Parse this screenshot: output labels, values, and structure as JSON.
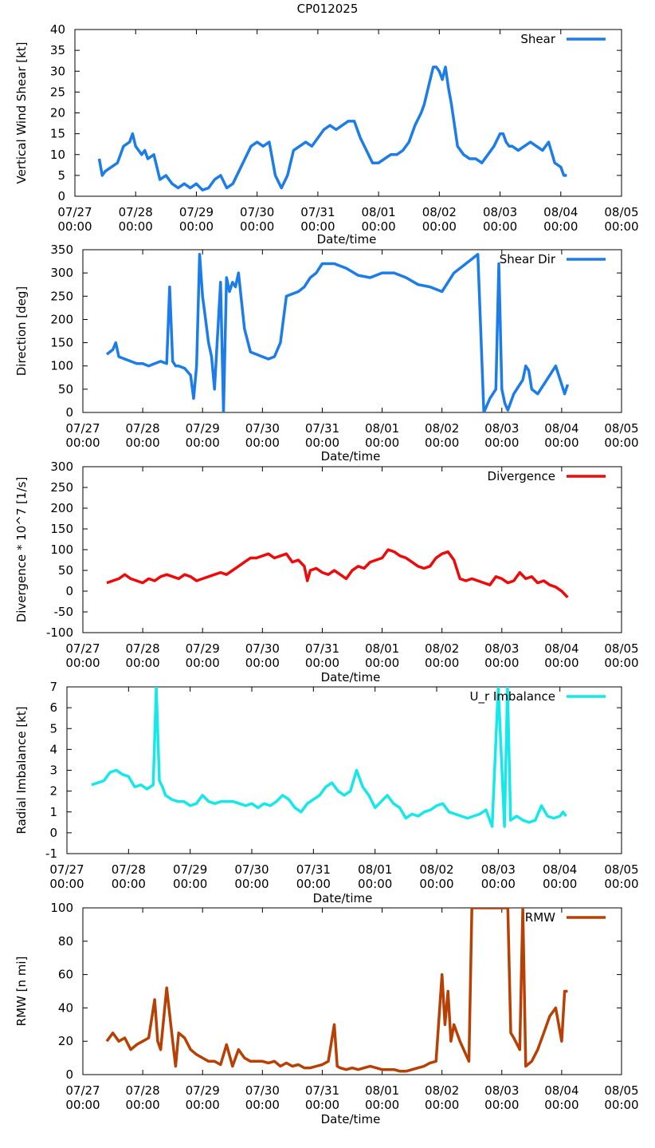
{
  "title": "CP012025",
  "xaxis": {
    "label": "Date/time",
    "range_days": [
      0,
      9
    ],
    "ticks": [
      {
        "d": 0,
        "l1": "07/27",
        "l2": "00:00"
      },
      {
        "d": 1,
        "l1": "07/28",
        "l2": "00:00"
      },
      {
        "d": 2,
        "l1": "07/29",
        "l2": "00:00"
      },
      {
        "d": 3,
        "l1": "07/30",
        "l2": "00:00"
      },
      {
        "d": 4,
        "l1": "07/31",
        "l2": "00:00"
      },
      {
        "d": 5,
        "l1": "08/01",
        "l2": "00:00"
      },
      {
        "d": 6,
        "l1": "08/02",
        "l2": "00:00"
      },
      {
        "d": 7,
        "l1": "08/03",
        "l2": "00:00"
      },
      {
        "d": 8,
        "l1": "08/04",
        "l2": "00:00"
      },
      {
        "d": 9,
        "l1": "08/05",
        "l2": "00:00"
      }
    ]
  },
  "chart_data": [
    {
      "type": "line",
      "ylabel": "Vertical Wind Shear [kt]",
      "ylim": [
        0,
        40
      ],
      "yticks": [
        0,
        5,
        10,
        15,
        20,
        25,
        30,
        35,
        40
      ],
      "legend": "Shear",
      "color": "#1c7ce8",
      "x_unit": "days since 07/27 00:00",
      "x": [
        0.4,
        0.45,
        0.5,
        0.6,
        0.7,
        0.8,
        0.9,
        0.95,
        1.0,
        1.05,
        1.1,
        1.15,
        1.2,
        1.3,
        1.4,
        1.5,
        1.6,
        1.7,
        1.8,
        1.9,
        2.0,
        2.1,
        2.2,
        2.3,
        2.4,
        2.5,
        2.6,
        2.7,
        2.8,
        2.9,
        3.0,
        3.1,
        3.2,
        3.3,
        3.4,
        3.5,
        3.6,
        3.7,
        3.8,
        3.9,
        4.0,
        4.1,
        4.2,
        4.3,
        4.4,
        4.5,
        4.6,
        4.7,
        4.8,
        4.9,
        5.0,
        5.1,
        5.2,
        5.3,
        5.4,
        5.5,
        5.6,
        5.7,
        5.75,
        5.8,
        5.9,
        5.95,
        6.0,
        6.05,
        6.1,
        6.15,
        6.2,
        6.3,
        6.4,
        6.5,
        6.6,
        6.7,
        6.8,
        6.9,
        7.0,
        7.05,
        7.1,
        7.15,
        7.2,
        7.3,
        7.4,
        7.5,
        7.6,
        7.7,
        7.8,
        7.9,
        8.0,
        8.05,
        8.1
      ],
      "y": [
        9,
        5,
        6,
        7,
        8,
        12,
        13,
        15,
        12,
        11,
        10,
        11,
        9,
        10,
        4,
        5,
        3,
        2,
        3,
        2,
        3,
        1.5,
        2,
        4,
        5,
        2,
        3,
        6,
        9,
        12,
        13,
        12,
        13,
        5,
        2,
        5,
        11,
        12,
        13,
        12,
        14,
        16,
        17,
        16,
        17,
        18,
        18,
        14,
        11,
        8,
        8,
        9,
        10,
        10,
        11,
        13,
        17,
        20,
        22,
        25,
        31,
        31,
        30,
        28,
        31,
        26,
        22,
        12,
        10,
        9,
        9,
        8,
        10,
        12,
        15,
        15,
        13,
        12,
        12,
        11,
        12,
        13,
        12,
        11,
        13,
        8,
        7,
        5,
        5
      ]
    },
    {
      "type": "line",
      "ylabel": "Direction [deg]",
      "ylim": [
        0,
        350
      ],
      "yticks": [
        0,
        50,
        100,
        150,
        200,
        250,
        300,
        350
      ],
      "legend": "Shear Dir",
      "color": "#1c7ce8",
      "x_unit": "days since 07/27 00:00",
      "x": [
        0.4,
        0.5,
        0.55,
        0.6,
        0.7,
        0.8,
        0.9,
        1.0,
        1.1,
        1.2,
        1.3,
        1.4,
        1.45,
        1.5,
        1.55,
        1.6,
        1.7,
        1.8,
        1.85,
        1.9,
        1.95,
        2.0,
        2.05,
        2.1,
        2.15,
        2.2,
        2.3,
        2.35,
        2.4,
        2.45,
        2.5,
        2.55,
        2.6,
        2.7,
        2.8,
        2.9,
        3.0,
        3.1,
        3.2,
        3.3,
        3.4,
        3.5,
        3.6,
        3.7,
        3.8,
        3.9,
        4.0,
        4.2,
        4.4,
        4.6,
        4.8,
        5.0,
        5.2,
        5.4,
        5.6,
        5.8,
        6.0,
        6.2,
        6.4,
        6.6,
        6.7,
        6.8,
        6.9,
        6.95,
        7.0,
        7.05,
        7.1,
        7.2,
        7.3,
        7.35,
        7.4,
        7.45,
        7.5,
        7.6,
        7.7,
        7.8,
        7.9,
        8.0,
        8.05,
        8.1
      ],
      "y": [
        125,
        135,
        150,
        120,
        115,
        110,
        105,
        105,
        100,
        105,
        110,
        105,
        270,
        110,
        100,
        100,
        95,
        80,
        30,
        100,
        340,
        250,
        200,
        150,
        120,
        50,
        280,
        0,
        290,
        260,
        280,
        270,
        300,
        180,
        130,
        125,
        120,
        115,
        120,
        150,
        250,
        255,
        260,
        270,
        290,
        300,
        320,
        320,
        310,
        295,
        290,
        300,
        300,
        290,
        275,
        270,
        260,
        300,
        320,
        340,
        0,
        30,
        50,
        320,
        50,
        20,
        5,
        40,
        60,
        70,
        100,
        90,
        50,
        40,
        60,
        80,
        100,
        60,
        40,
        60
      ]
    },
    {
      "type": "line",
      "ylabel": "Divergence * 10^7 [1/s]",
      "ylim": [
        -100,
        300
      ],
      "yticks": [
        -100,
        -50,
        0,
        50,
        100,
        150,
        200,
        250,
        300
      ],
      "legend": "Divergence",
      "color": "#ee0a0a",
      "x_unit": "days since 07/27 00:00",
      "x": [
        0.4,
        0.5,
        0.6,
        0.7,
        0.8,
        0.9,
        1.0,
        1.1,
        1.2,
        1.3,
        1.4,
        1.5,
        1.6,
        1.7,
        1.8,
        1.9,
        2.0,
        2.1,
        2.2,
        2.3,
        2.4,
        2.5,
        2.6,
        2.7,
        2.8,
        2.9,
        3.0,
        3.1,
        3.2,
        3.3,
        3.4,
        3.5,
        3.6,
        3.7,
        3.75,
        3.8,
        3.9,
        4.0,
        4.1,
        4.2,
        4.3,
        4.4,
        4.5,
        4.6,
        4.7,
        4.8,
        4.9,
        5.0,
        5.1,
        5.2,
        5.3,
        5.4,
        5.5,
        5.6,
        5.7,
        5.8,
        5.9,
        6.0,
        6.1,
        6.2,
        6.3,
        6.4,
        6.5,
        6.6,
        6.7,
        6.8,
        6.9,
        7.0,
        7.1,
        7.2,
        7.3,
        7.4,
        7.5,
        7.6,
        7.7,
        7.8,
        7.9,
        8.0,
        8.1
      ],
      "y": [
        20,
        25,
        30,
        40,
        30,
        25,
        20,
        30,
        25,
        35,
        40,
        35,
        30,
        40,
        35,
        25,
        30,
        35,
        40,
        45,
        40,
        50,
        60,
        70,
        80,
        80,
        85,
        90,
        80,
        85,
        90,
        70,
        75,
        60,
        25,
        50,
        55,
        45,
        40,
        50,
        40,
        30,
        50,
        60,
        55,
        70,
        75,
        80,
        100,
        95,
        85,
        80,
        70,
        60,
        55,
        60,
        80,
        90,
        95,
        75,
        30,
        25,
        30,
        25,
        20,
        15,
        35,
        30,
        20,
        25,
        45,
        30,
        35,
        20,
        25,
        15,
        10,
        0,
        -15
      ]
    },
    {
      "type": "line",
      "ylabel": "Radial Imbalance [kt]",
      "ylim": [
        -1,
        7
      ],
      "yticks": [
        -1,
        0,
        1,
        2,
        3,
        4,
        5,
        6,
        7
      ],
      "legend": "U_r Imbalance",
      "color": "#14e8e8",
      "x_unit": "days since 07/27 00:00",
      "x": [
        0.4,
        0.5,
        0.6,
        0.7,
        0.8,
        0.9,
        1.0,
        1.1,
        1.2,
        1.3,
        1.4,
        1.45,
        1.5,
        1.55,
        1.6,
        1.7,
        1.8,
        1.9,
        2.0,
        2.1,
        2.2,
        2.3,
        2.4,
        2.5,
        2.6,
        2.7,
        2.8,
        2.9,
        3.0,
        3.1,
        3.2,
        3.3,
        3.4,
        3.5,
        3.6,
        3.7,
        3.8,
        3.9,
        4.0,
        4.1,
        4.2,
        4.3,
        4.4,
        4.5,
        4.6,
        4.7,
        4.8,
        4.9,
        5.0,
        5.1,
        5.2,
        5.3,
        5.4,
        5.5,
        5.6,
        5.7,
        5.8,
        5.9,
        6.0,
        6.1,
        6.2,
        6.3,
        6.4,
        6.5,
        6.6,
        6.7,
        6.8,
        6.9,
        7.0,
        7.1,
        7.15,
        7.2,
        7.25,
        7.3,
        7.35,
        7.4,
        7.5,
        7.6,
        7.7,
        7.8,
        7.9,
        8.0,
        8.05,
        8.1
      ],
      "y": [
        2.3,
        2.4,
        2.5,
        2.9,
        3.0,
        2.8,
        2.7,
        2.2,
        2.3,
        2.1,
        2.3,
        7.0,
        2.5,
        2.2,
        1.8,
        1.6,
        1.5,
        1.5,
        1.3,
        1.4,
        1.8,
        1.5,
        1.4,
        1.5,
        1.5,
        1.5,
        1.4,
        1.3,
        1.4,
        1.2,
        1.4,
        1.3,
        1.5,
        1.8,
        1.6,
        1.2,
        1.0,
        1.4,
        1.6,
        1.8,
        2.2,
        2.4,
        2.0,
        1.8,
        2.0,
        3.0,
        2.2,
        1.8,
        1.2,
        1.5,
        1.8,
        1.4,
        1.2,
        0.7,
        0.9,
        0.8,
        1.0,
        1.1,
        1.3,
        1.4,
        1.0,
        0.9,
        0.8,
        0.7,
        0.8,
        0.9,
        1.1,
        0.3,
        7.0,
        0.3,
        7.0,
        0.6,
        0.7,
        0.8,
        0.7,
        0.6,
        0.5,
        0.6,
        1.3,
        0.8,
        0.7,
        0.8,
        1.0,
        0.8
      ]
    },
    {
      "type": "line",
      "ylabel": "RMW [n mi]",
      "ylim": [
        0,
        100
      ],
      "yticks": [
        0,
        20,
        40,
        60,
        80,
        100
      ],
      "legend": "RMW",
      "color": "#b84005",
      "x_unit": "days since 07/27 00:00",
      "x": [
        0.4,
        0.5,
        0.6,
        0.7,
        0.8,
        0.9,
        1.0,
        1.1,
        1.2,
        1.25,
        1.3,
        1.4,
        1.5,
        1.55,
        1.6,
        1.7,
        1.8,
        1.9,
        2.0,
        2.1,
        2.2,
        2.3,
        2.4,
        2.5,
        2.6,
        2.7,
        2.8,
        2.9,
        3.0,
        3.1,
        3.2,
        3.3,
        3.4,
        3.5,
        3.6,
        3.7,
        3.8,
        3.9,
        4.0,
        4.1,
        4.2,
        4.25,
        4.3,
        4.4,
        4.5,
        4.6,
        4.7,
        4.8,
        4.9,
        5.0,
        5.1,
        5.2,
        5.3,
        5.4,
        5.5,
        5.6,
        5.7,
        5.8,
        5.9,
        6.0,
        6.05,
        6.1,
        6.15,
        6.2,
        6.3,
        6.4,
        6.45,
        6.5,
        7.1,
        7.15,
        7.2,
        7.3,
        7.35,
        7.4,
        7.5,
        7.6,
        7.7,
        7.8,
        7.9,
        8.0,
        8.05,
        8.1
      ],
      "y": [
        20,
        25,
        20,
        22,
        15,
        18,
        20,
        22,
        45,
        20,
        15,
        52,
        20,
        5,
        25,
        22,
        15,
        12,
        10,
        8,
        8,
        6,
        18,
        5,
        15,
        10,
        8,
        8,
        8,
        7,
        8,
        5,
        7,
        5,
        6,
        4,
        4,
        5,
        6,
        8,
        30,
        5,
        4,
        3,
        4,
        3,
        4,
        5,
        4,
        3,
        3,
        3,
        2,
        2,
        3,
        4,
        5,
        7,
        8,
        60,
        30,
        50,
        20,
        30,
        20,
        12,
        8,
        100,
        100,
        25,
        22,
        15,
        100,
        5,
        8,
        15,
        25,
        35,
        40,
        20,
        50,
        50
      ]
    }
  ]
}
